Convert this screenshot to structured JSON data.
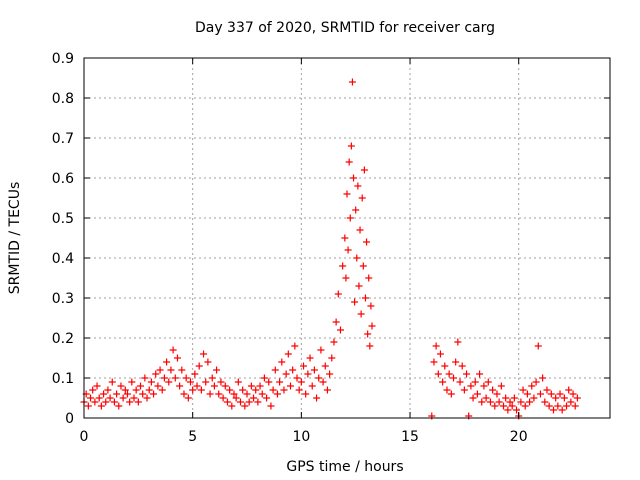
{
  "chart_data": {
    "type": "scatter",
    "title": "Day 337 of 2020, SRMTID for receiver carg",
    "xlabel": "GPS time / hours",
    "ylabel": "SRMTID / TECUs",
    "xlim": [
      0,
      24.2
    ],
    "ylim": [
      0,
      0.9
    ],
    "x_ticks": [
      0,
      5,
      10,
      15,
      20
    ],
    "x_tick_labels": [
      "0",
      "5",
      "10",
      "15",
      "20"
    ],
    "y_ticks": [
      0,
      0.1,
      0.2,
      0.3,
      0.4,
      0.5,
      0.6,
      0.7,
      0.8,
      0.9
    ],
    "y_tick_labels": [
      "0",
      "0.1",
      "0.2",
      "0.3",
      "0.4",
      "0.5",
      "0.6",
      "0.7",
      "0.8",
      "0.9"
    ],
    "grid": true,
    "marker": "plus",
    "color": "#ff0000",
    "series": [
      {
        "name": "SRMTID",
        "points": [
          [
            0.0,
            0.04
          ],
          [
            0.1,
            0.06
          ],
          [
            0.2,
            0.03
          ],
          [
            0.3,
            0.05
          ],
          [
            0.4,
            0.07
          ],
          [
            0.5,
            0.04
          ],
          [
            0.6,
            0.08
          ],
          [
            0.7,
            0.05
          ],
          [
            0.8,
            0.03
          ],
          [
            0.9,
            0.06
          ],
          [
            1.0,
            0.04
          ],
          [
            1.1,
            0.07
          ],
          [
            1.2,
            0.05
          ],
          [
            1.3,
            0.09
          ],
          [
            1.4,
            0.04
          ],
          [
            1.5,
            0.06
          ],
          [
            1.6,
            0.03
          ],
          [
            1.7,
            0.08
          ],
          [
            1.8,
            0.05
          ],
          [
            1.9,
            0.07
          ],
          [
            2.0,
            0.06
          ],
          [
            2.1,
            0.04
          ],
          [
            2.2,
            0.09
          ],
          [
            2.3,
            0.05
          ],
          [
            2.4,
            0.07
          ],
          [
            2.5,
            0.04
          ],
          [
            2.6,
            0.08
          ],
          [
            2.7,
            0.06
          ],
          [
            2.8,
            0.1
          ],
          [
            2.9,
            0.05
          ],
          [
            3.0,
            0.07
          ],
          [
            3.1,
            0.09
          ],
          [
            3.2,
            0.06
          ],
          [
            3.3,
            0.11
          ],
          [
            3.4,
            0.08
          ],
          [
            3.5,
            0.12
          ],
          [
            3.6,
            0.07
          ],
          [
            3.7,
            0.1
          ],
          [
            3.8,
            0.14
          ],
          [
            3.9,
            0.09
          ],
          [
            4.0,
            0.12
          ],
          [
            4.1,
            0.17
          ],
          [
            4.2,
            0.1
          ],
          [
            4.3,
            0.15
          ],
          [
            4.4,
            0.08
          ],
          [
            4.5,
            0.12
          ],
          [
            4.6,
            0.06
          ],
          [
            4.7,
            0.1
          ],
          [
            4.8,
            0.05
          ],
          [
            4.9,
            0.09
          ],
          [
            5.0,
            0.07
          ],
          [
            5.1,
            0.11
          ],
          [
            5.2,
            0.08
          ],
          [
            5.3,
            0.13
          ],
          [
            5.4,
            0.07
          ],
          [
            5.5,
            0.16
          ],
          [
            5.6,
            0.09
          ],
          [
            5.7,
            0.14
          ],
          [
            5.8,
            0.06
          ],
          [
            5.9,
            0.1
          ],
          [
            6.0,
            0.08
          ],
          [
            6.1,
            0.12
          ],
          [
            6.2,
            0.06
          ],
          [
            6.3,
            0.09
          ],
          [
            6.4,
            0.05
          ],
          [
            6.5,
            0.08
          ],
          [
            6.6,
            0.04
          ],
          [
            6.7,
            0.07
          ],
          [
            6.8,
            0.03
          ],
          [
            6.9,
            0.06
          ],
          [
            7.0,
            0.05
          ],
          [
            7.1,
            0.09
          ],
          [
            7.2,
            0.04
          ],
          [
            7.3,
            0.07
          ],
          [
            7.4,
            0.03
          ],
          [
            7.5,
            0.06
          ],
          [
            7.6,
            0.04
          ],
          [
            7.7,
            0.08
          ],
          [
            7.8,
            0.05
          ],
          [
            7.9,
            0.07
          ],
          [
            8.0,
            0.04
          ],
          [
            8.1,
            0.08
          ],
          [
            8.2,
            0.06
          ],
          [
            8.3,
            0.1
          ],
          [
            8.4,
            0.05
          ],
          [
            8.5,
            0.09
          ],
          [
            8.6,
            0.03
          ],
          [
            8.7,
            0.07
          ],
          [
            8.8,
            0.12
          ],
          [
            8.9,
            0.06
          ],
          [
            9.0,
            0.09
          ],
          [
            9.1,
            0.14
          ],
          [
            9.2,
            0.07
          ],
          [
            9.3,
            0.11
          ],
          [
            9.4,
            0.16
          ],
          [
            9.5,
            0.08
          ],
          [
            9.6,
            0.12
          ],
          [
            9.7,
            0.18
          ],
          [
            9.8,
            0.1
          ],
          [
            9.9,
            0.07
          ],
          [
            10.0,
            0.09
          ],
          [
            10.1,
            0.13
          ],
          [
            10.2,
            0.06
          ],
          [
            10.3,
            0.11
          ],
          [
            10.4,
            0.15
          ],
          [
            10.5,
            0.08
          ],
          [
            10.6,
            0.12
          ],
          [
            10.7,
            0.05
          ],
          [
            10.8,
            0.1
          ],
          [
            10.9,
            0.17
          ],
          [
            11.0,
            0.09
          ],
          [
            11.1,
            0.13
          ],
          [
            11.2,
            0.07
          ],
          [
            11.3,
            0.11
          ],
          [
            11.4,
            0.15
          ],
          [
            11.5,
            0.19
          ],
          [
            11.6,
            0.24
          ],
          [
            11.7,
            0.31
          ],
          [
            11.8,
            0.22
          ],
          [
            11.9,
            0.38
          ],
          [
            12.0,
            0.45
          ],
          [
            12.05,
            0.35
          ],
          [
            12.1,
            0.56
          ],
          [
            12.15,
            0.42
          ],
          [
            12.2,
            0.64
          ],
          [
            12.25,
            0.5
          ],
          [
            12.3,
            0.68
          ],
          [
            12.35,
            0.84
          ],
          [
            12.4,
            0.6
          ],
          [
            12.45,
            0.29
          ],
          [
            12.5,
            0.52
          ],
          [
            12.55,
            0.4
          ],
          [
            12.6,
            0.58
          ],
          [
            12.65,
            0.33
          ],
          [
            12.7,
            0.47
          ],
          [
            12.75,
            0.26
          ],
          [
            12.8,
            0.55
          ],
          [
            12.85,
            0.38
          ],
          [
            12.9,
            0.62
          ],
          [
            12.95,
            0.3
          ],
          [
            13.0,
            0.44
          ],
          [
            13.05,
            0.21
          ],
          [
            13.1,
            0.35
          ],
          [
            13.15,
            0.18
          ],
          [
            13.2,
            0.28
          ],
          [
            13.25,
            0.23
          ],
          [
            16.0,
            0.005
          ],
          [
            16.1,
            0.14
          ],
          [
            16.2,
            0.18
          ],
          [
            16.3,
            0.11
          ],
          [
            16.4,
            0.16
          ],
          [
            16.5,
            0.09
          ],
          [
            16.6,
            0.13
          ],
          [
            16.7,
            0.07
          ],
          [
            16.8,
            0.11
          ],
          [
            16.9,
            0.06
          ],
          [
            17.0,
            0.1
          ],
          [
            17.1,
            0.14
          ],
          [
            17.2,
            0.19
          ],
          [
            17.3,
            0.09
          ],
          [
            17.4,
            0.13
          ],
          [
            17.5,
            0.07
          ],
          [
            17.6,
            0.11
          ],
          [
            17.7,
            0.005
          ],
          [
            17.8,
            0.08
          ],
          [
            17.9,
            0.05
          ],
          [
            18.0,
            0.09
          ],
          [
            18.1,
            0.06
          ],
          [
            18.2,
            0.11
          ],
          [
            18.3,
            0.04
          ],
          [
            18.4,
            0.08
          ],
          [
            18.5,
            0.05
          ],
          [
            18.6,
            0.09
          ],
          [
            18.7,
            0.04
          ],
          [
            18.8,
            0.07
          ],
          [
            18.9,
            0.03
          ],
          [
            19.0,
            0.06
          ],
          [
            19.1,
            0.04
          ],
          [
            19.2,
            0.08
          ],
          [
            19.3,
            0.03
          ],
          [
            19.4,
            0.05
          ],
          [
            19.5,
            0.02
          ],
          [
            19.6,
            0.04
          ],
          [
            19.7,
            0.03
          ],
          [
            19.8,
            0.05
          ],
          [
            19.9,
            0.02
          ],
          [
            20.0,
            0.005
          ],
          [
            20.1,
            0.04
          ],
          [
            20.2,
            0.07
          ],
          [
            20.3,
            0.03
          ],
          [
            20.4,
            0.06
          ],
          [
            20.5,
            0.04
          ],
          [
            20.6,
            0.08
          ],
          [
            20.7,
            0.05
          ],
          [
            20.8,
            0.09
          ],
          [
            20.9,
            0.18
          ],
          [
            21.0,
            0.06
          ],
          [
            21.1,
            0.1
          ],
          [
            21.2,
            0.04
          ],
          [
            21.3,
            0.07
          ],
          [
            21.4,
            0.03
          ],
          [
            21.5,
            0.06
          ],
          [
            21.6,
            0.02
          ],
          [
            21.7,
            0.05
          ],
          [
            21.8,
            0.03
          ],
          [
            21.9,
            0.06
          ],
          [
            22.0,
            0.02
          ],
          [
            22.1,
            0.05
          ],
          [
            22.2,
            0.03
          ],
          [
            22.3,
            0.07
          ],
          [
            22.4,
            0.04
          ],
          [
            22.5,
            0.06
          ],
          [
            22.6,
            0.03
          ],
          [
            22.7,
            0.05
          ]
        ]
      }
    ]
  }
}
